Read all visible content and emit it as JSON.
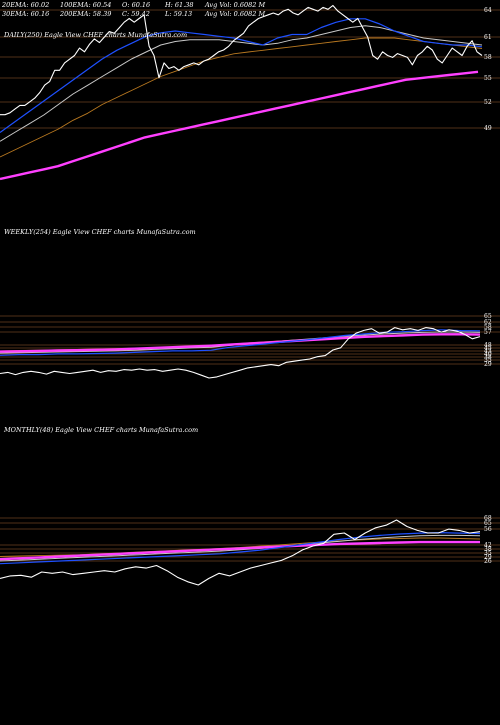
{
  "header": {
    "row1": [
      "20EMA: 60.02",
      "100EMA: 60.54",
      "O: 60.16",
      "H: 61.38",
      "Avg Vol: 0.6082 M"
    ],
    "row2": [
      "30EMA: 60.16",
      "200EMA: 58.39",
      "C: 59.42",
      "L: 59.13",
      "Avg Vol: 0.6082 M"
    ]
  },
  "chart_data": [
    {
      "type": "line",
      "label": "DAILY(250) Eagle   View  CHEF charts MunafaSutra.com",
      "yticks": [
        "64",
        "61",
        "58",
        "55",
        "52",
        "49"
      ],
      "colors": {
        "price": "#ffffff",
        "ema_short": "#1e50ff",
        "ema_mid": "#c8c8c8",
        "ema_long": "#b87820",
        "ema_200": "#ff40ff"
      },
      "series": [
        {
          "role": "price",
          "values": [
            0.62,
            0.62,
            0.61,
            0.59,
            0.57,
            0.57,
            0.55,
            0.53,
            0.5,
            0.46,
            0.44,
            0.38,
            0.38,
            0.34,
            0.32,
            0.3,
            0.26,
            0.28,
            0.24,
            0.21,
            0.23,
            0.2,
            0.17,
            0.18,
            0.15,
            0.12,
            0.1,
            0.12,
            0.1,
            0.08,
            0.25,
            0.3,
            0.42,
            0.34,
            0.37,
            0.36,
            0.38,
            0.36,
            0.35,
            0.34,
            0.35,
            0.33,
            0.32,
            0.3,
            0.28,
            0.27,
            0.25,
            0.22,
            0.2,
            0.18,
            0.14,
            0.12,
            0.1,
            0.09,
            0.08,
            0.07,
            0.08,
            0.06,
            0.05,
            0.07,
            0.08,
            0.06,
            0.04,
            0.05,
            0.06,
            0.04,
            0.05,
            0.03,
            0.06,
            0.08,
            0.1,
            0.12,
            0.1,
            0.15,
            0.2,
            0.3,
            0.32,
            0.28,
            0.3,
            0.31,
            0.29,
            0.3,
            0.31,
            0.35,
            0.3,
            0.28,
            0.25,
            0.27,
            0.32,
            0.34,
            0.3,
            0.26,
            0.28,
            0.3,
            0.25,
            0.22,
            0.28,
            0.3
          ]
        },
        {
          "role": "ema_short",
          "values": [
            0.7,
            0.64,
            0.58,
            0.52,
            0.46,
            0.4,
            0.34,
            0.28,
            0.23,
            0.19,
            0.15,
            0.13,
            0.12,
            0.13,
            0.14,
            0.15,
            0.16,
            0.18,
            0.2,
            0.16,
            0.14,
            0.14,
            0.1,
            0.07,
            0.05,
            0.05,
            0.08,
            0.12,
            0.15,
            0.18,
            0.19,
            0.2,
            0.2,
            0.21
          ]
        },
        {
          "role": "ema_mid",
          "values": [
            0.75,
            0.7,
            0.65,
            0.6,
            0.54,
            0.48,
            0.43,
            0.38,
            0.33,
            0.28,
            0.24,
            0.2,
            0.18,
            0.17,
            0.17,
            0.17,
            0.18,
            0.19,
            0.2,
            0.19,
            0.17,
            0.16,
            0.14,
            0.12,
            0.1,
            0.09,
            0.1,
            0.12,
            0.14,
            0.16,
            0.17,
            0.18,
            0.19,
            0.2
          ]
        },
        {
          "role": "ema_long",
          "values": [
            0.84,
            0.8,
            0.76,
            0.72,
            0.68,
            0.63,
            0.59,
            0.54,
            0.5,
            0.46,
            0.42,
            0.38,
            0.35,
            0.32,
            0.29,
            0.27,
            0.25,
            0.24,
            0.23,
            0.22,
            0.21,
            0.2,
            0.19,
            0.18,
            0.17,
            0.16,
            0.16,
            0.16,
            0.17,
            0.18,
            0.19,
            0.2,
            0.21,
            0.22
          ]
        },
        {
          "role": "ema_200",
          "values": [
            0.9,
            0.88,
            0.86,
            0.84,
            0.82,
            0.79,
            0.76,
            0.73,
            0.7,
            0.67,
            0.64,
            0.62,
            0.6,
            0.58,
            0.56,
            0.54,
            0.52,
            0.5,
            0.48,
            0.46,
            0.44,
            0.42,
            0.4,
            0.38,
            0.36,
            0.34,
            0.32,
            0.3,
            0.28,
            0.27,
            0.26,
            0.25,
            0.24,
            0.23
          ]
        }
      ]
    },
    {
      "type": "line",
      "label": "WEEKLY(254) Eagle   View  CHEF charts MunafaSutra.com",
      "yticks": [
        "65",
        "62",
        "58",
        "57",
        "48",
        "45",
        "43",
        "40",
        "38",
        "35",
        "29"
      ],
      "colors": {
        "price": "#ffffff",
        "ema_short": "#1e50ff",
        "ema_mid": "#c8c8c8",
        "ema_long": "#b87820",
        "ema_200": "#ff40ff"
      },
      "series": [
        {
          "role": "price",
          "values": [
            0.92,
            0.9,
            0.94,
            0.9,
            0.88,
            0.9,
            0.93,
            0.88,
            0.9,
            0.92,
            0.9,
            0.88,
            0.86,
            0.9,
            0.87,
            0.88,
            0.85,
            0.86,
            0.84,
            0.86,
            0.85,
            0.88,
            0.86,
            0.84,
            0.86,
            0.9,
            0.95,
            1.0,
            0.98,
            0.94,
            0.9,
            0.86,
            0.82,
            0.8,
            0.78,
            0.76,
            0.78,
            0.72,
            0.7,
            0.68,
            0.66,
            0.62,
            0.6,
            0.5,
            0.46,
            0.3,
            0.2,
            0.15,
            0.12,
            0.2,
            0.18,
            0.1,
            0.14,
            0.12,
            0.15,
            0.1,
            0.12,
            0.18,
            0.14,
            0.16,
            0.22,
            0.3,
            0.26
          ]
        },
        {
          "role": "ema_short",
          "values": [
            0.82,
            0.8,
            0.8,
            0.78,
            0.78,
            0.77,
            0.76,
            0.74,
            0.72,
            0.7,
            0.7,
            0.68,
            0.6,
            0.55,
            0.5,
            0.45,
            0.4,
            0.34,
            0.28,
            0.24,
            0.2,
            0.18,
            0.15,
            0.13,
            0.15,
            0.16
          ]
        },
        {
          "role": "ema_mid",
          "values": [
            0.76,
            0.75,
            0.74,
            0.73,
            0.72,
            0.71,
            0.7,
            0.68,
            0.66,
            0.64,
            0.62,
            0.6,
            0.55,
            0.5,
            0.46,
            0.42,
            0.38,
            0.34,
            0.3,
            0.27,
            0.24,
            0.22,
            0.2,
            0.19,
            0.19,
            0.2
          ]
        },
        {
          "role": "ema_long",
          "values": [
            0.7,
            0.69,
            0.68,
            0.67,
            0.66,
            0.65,
            0.64,
            0.63,
            0.62,
            0.6,
            0.58,
            0.56,
            0.52,
            0.48,
            0.45,
            0.42,
            0.39,
            0.36,
            0.33,
            0.3,
            0.28,
            0.26,
            0.25,
            0.24,
            0.24,
            0.25
          ]
        },
        {
          "role": "ema_200",
          "values": [
            0.72,
            0.71,
            0.7,
            0.69,
            0.68,
            0.67,
            0.66,
            0.64,
            0.62,
            0.6,
            0.58,
            0.56,
            0.53,
            0.5,
            0.47,
            0.44,
            0.41,
            0.38,
            0.35,
            0.32,
            0.3,
            0.28,
            0.26,
            0.25,
            0.25,
            0.26
          ]
        }
      ]
    },
    {
      "type": "line",
      "label": "MONTHLY(48) Eagle   View  CHEF charts MunafaSutra.com",
      "yticks": [
        "68",
        "65",
        "56",
        "42",
        "38",
        "35",
        "29",
        "26"
      ],
      "colors": {
        "price": "#ffffff",
        "ema_short": "#1e50ff",
        "ema_mid": "#c8c8c8",
        "ema_long": "#b87820",
        "ema_200": "#ff40ff"
      },
      "series": [
        {
          "role": "price",
          "values": [
            0.9,
            0.86,
            0.85,
            0.88,
            0.8,
            0.82,
            0.8,
            0.84,
            0.82,
            0.8,
            0.78,
            0.8,
            0.75,
            0.72,
            0.74,
            0.7,
            0.78,
            0.88,
            0.95,
            1.0,
            0.9,
            0.82,
            0.86,
            0.8,
            0.74,
            0.7,
            0.66,
            0.62,
            0.55,
            0.46,
            0.4,
            0.36,
            0.22,
            0.2,
            0.3,
            0.2,
            0.12,
            0.08,
            0.0,
            0.1,
            0.16,
            0.2,
            0.2,
            0.14,
            0.16,
            0.2,
            0.18
          ]
        },
        {
          "role": "ema_short",
          "values": [
            0.86,
            0.84,
            0.82,
            0.8,
            0.78,
            0.76,
            0.74,
            0.72,
            0.7,
            0.68,
            0.66,
            0.64,
            0.6,
            0.56,
            0.5,
            0.44,
            0.38,
            0.32,
            0.27,
            0.23,
            0.2,
            0.18,
            0.17,
            0.18,
            0.19
          ]
        },
        {
          "role": "ema_mid",
          "values": [
            0.8,
            0.78,
            0.76,
            0.74,
            0.72,
            0.7,
            0.68,
            0.66,
            0.64,
            0.62,
            0.6,
            0.58,
            0.55,
            0.52,
            0.48,
            0.44,
            0.4,
            0.36,
            0.32,
            0.29,
            0.26,
            0.24,
            0.23,
            0.23,
            0.24
          ]
        },
        {
          "role": "ema_long",
          "values": [
            0.7,
            0.69,
            0.68,
            0.67,
            0.66,
            0.64,
            0.62,
            0.6,
            0.58,
            0.56,
            0.54,
            0.52,
            0.5,
            0.47,
            0.44,
            0.41,
            0.38,
            0.35,
            0.33,
            0.31,
            0.3,
            0.29,
            0.29,
            0.3,
            0.31
          ]
        },
        {
          "role": "ema_200",
          "values": [
            0.76,
            0.74,
            0.72,
            0.7,
            0.68,
            0.66,
            0.64,
            0.62,
            0.6,
            0.58,
            0.56,
            0.54,
            0.52,
            0.5,
            0.48,
            0.46,
            0.44,
            0.42,
            0.41,
            0.4,
            0.39,
            0.38,
            0.38,
            0.38,
            0.38
          ]
        }
      ]
    }
  ]
}
